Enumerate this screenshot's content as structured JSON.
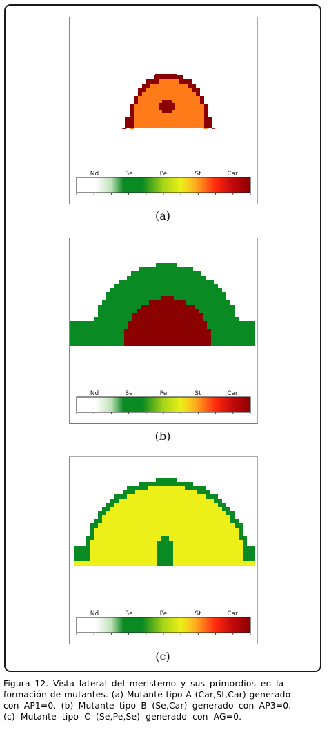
{
  "colors": {
    "Nd": "#ffffff",
    "Se": "#0a8a22",
    "Pe": "#ecf018",
    "St": "#ff2a10",
    "Car": "#8b0000",
    "orange": "#ff7a18",
    "frame": "#1a1a1a"
  },
  "colorbar_labels": [
    "Nd",
    "Se",
    "Pe",
    "St",
    "Car"
  ],
  "panels": [
    {
      "label": "(a)",
      "description_tag": "Car-St-Car"
    },
    {
      "label": "(b)",
      "description_tag": "Se-Car"
    },
    {
      "label": "(c)",
      "description_tag": "Se-Pe-Se"
    }
  ],
  "caption": {
    "line1": "Figura 12. Vista lateral del meristemo y sus primordios en la",
    "line2": "formación de mutantes. (a) Mutante tipo A (Car,St,Car) generado",
    "line3": "con AP1=0. (b) Mutante tipo B (Se,Car) generado con AP3=0.",
    "line4": "(c) Mutante tipo C (Se,Pe,Se) generado con AG=0."
  }
}
